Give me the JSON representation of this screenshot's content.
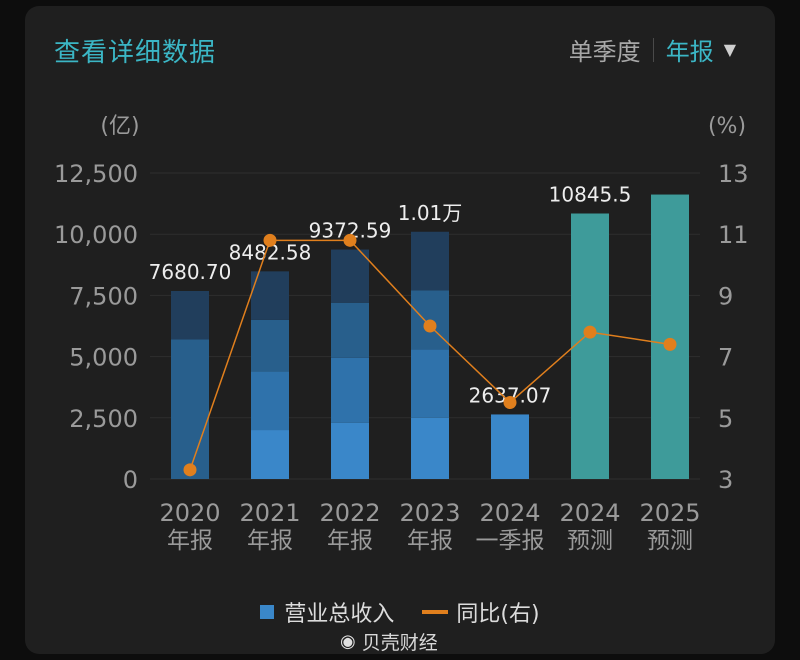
{
  "header": {
    "title": "查看详细数据",
    "toggle_quarter": "单季度",
    "toggle_annual": "年报"
  },
  "chart_data": {
    "type": "bar",
    "left_unit": "(亿)",
    "right_unit": "(%)",
    "ylim": [
      0,
      12500
    ],
    "y_ticks": [
      "12,500",
      "10,000",
      "7,500",
      "5,000",
      "2,500",
      "0"
    ],
    "y_tick_values": [
      12500,
      10000,
      7500,
      5000,
      2500,
      0
    ],
    "y2lim": [
      3,
      13
    ],
    "y2_ticks": [
      "13",
      "11",
      "9",
      "7",
      "5",
      "3"
    ],
    "y2_tick_values": [
      13,
      11,
      9,
      7,
      5,
      3
    ],
    "categories": [
      {
        "line1": "2020",
        "line2": "年报"
      },
      {
        "line1": "2021",
        "line2": "年报"
      },
      {
        "line1": "2022",
        "line2": "年报"
      },
      {
        "line1": "2023",
        "line2": "年报"
      },
      {
        "line1": "2024",
        "line2": "一季报"
      },
      {
        "line1": "2024",
        "line2": "预测"
      },
      {
        "line1": "2025",
        "line2": "预测"
      }
    ],
    "series": [
      {
        "name": "营业总收入",
        "values": [
          7680.7,
          8482.58,
          9372.59,
          10100,
          2637.07,
          10845.5,
          11620
        ],
        "data_labels": [
          "7680.70",
          "8482.58",
          "9372.59",
          "1.01万",
          "2637.07",
          "10845.5",
          ""
        ],
        "quarter_breakdown": [
          [
            0,
            0,
            5700,
            7680.7
          ],
          [
            2000,
            4400,
            6500,
            8482.58
          ],
          [
            2300,
            4950,
            7200,
            9372.59
          ],
          [
            2500,
            5300,
            7700,
            10100
          ],
          [
            2637.07
          ],
          [
            10845.5
          ],
          [
            11620
          ]
        ]
      },
      {
        "name": "同比(右)",
        "values": [
          3.3,
          10.8,
          10.8,
          8.0,
          5.5,
          7.8,
          7.4
        ]
      }
    ],
    "colors": {
      "q1": "#3a87c9",
      "q2": "#2f72ab",
      "q3": "#285f8c",
      "q4": "#213e5c",
      "forecast": "#3e9b9a",
      "line": "#e07f1d",
      "grid": "#2f2f2f"
    },
    "legend": [
      "营业总收入",
      "同比(右)"
    ]
  },
  "watermark": "贝壳财经"
}
